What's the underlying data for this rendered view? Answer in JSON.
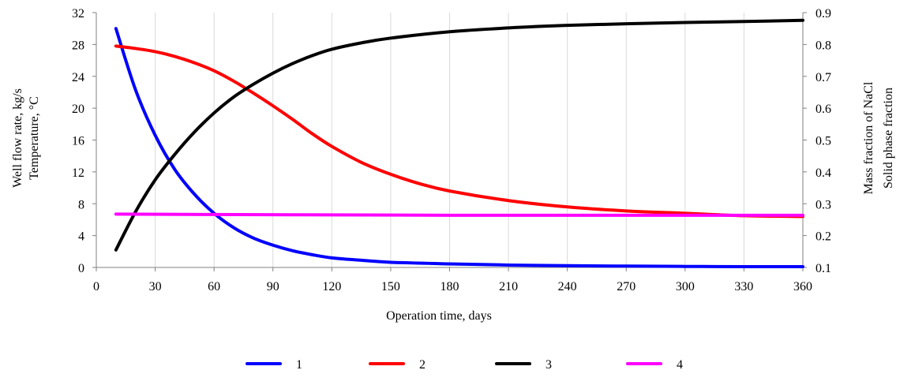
{
  "chart_data": {
    "type": "line",
    "xlabel": "Operation time, days",
    "ylabel_left": [
      "Well flow rate, kg/s",
      "Temperature, °C"
    ],
    "ylabel_right": [
      "Mass fraction of NaCl",
      "Solid phase fraction"
    ],
    "xlim": [
      0,
      360
    ],
    "ylim_left": [
      0,
      32
    ],
    "ylim_right": [
      0.1,
      0.9
    ],
    "x_ticks": [
      "0",
      "30",
      "60",
      "90",
      "120",
      "150",
      "180",
      "210",
      "240",
      "270",
      "300",
      "330",
      "360"
    ],
    "y_left_ticks": [
      "0",
      "4",
      "8",
      "12",
      "16",
      "20",
      "24",
      "28",
      "32"
    ],
    "y_right_ticks": [
      "0.1",
      "0.2",
      "0.3",
      "0.4",
      "0.5",
      "0.6",
      "0.7",
      "0.8",
      "0.9"
    ],
    "grid": "vertical",
    "legend_position": "bottom",
    "series": [
      {
        "name": "1",
        "color": "#0000ff",
        "axis": "left",
        "x": [
          10,
          20,
          30,
          40,
          50,
          60,
          70,
          80,
          90,
          100,
          110,
          120,
          135,
          150,
          180,
          210,
          240,
          270,
          300,
          330,
          360
        ],
        "y": [
          30.0,
          22.3,
          16.6,
          12.3,
          9.2,
          6.8,
          5.0,
          3.7,
          2.8,
          2.1,
          1.6,
          1.2,
          0.9,
          0.65,
          0.45,
          0.3,
          0.22,
          0.17,
          0.13,
          0.1,
          0.1
        ]
      },
      {
        "name": "2",
        "color": "#ff0000",
        "axis": "left",
        "x": [
          10,
          20,
          30,
          40,
          50,
          60,
          70,
          80,
          90,
          100,
          110,
          120,
          135,
          150,
          165,
          180,
          210,
          240,
          270,
          300,
          330,
          360
        ],
        "y": [
          27.8,
          27.5,
          27.1,
          26.5,
          25.7,
          24.7,
          23.4,
          21.9,
          20.3,
          18.6,
          16.8,
          15.2,
          13.2,
          11.7,
          10.5,
          9.6,
          8.4,
          7.6,
          7.1,
          6.8,
          6.5,
          6.4
        ]
      },
      {
        "name": "3",
        "color": "#000000",
        "axis": "right",
        "x": [
          10,
          20,
          30,
          40,
          50,
          60,
          70,
          80,
          90,
          100,
          110,
          120,
          135,
          150,
          180,
          210,
          240,
          270,
          300,
          330,
          360
        ],
        "y": [
          0.155,
          0.275,
          0.375,
          0.455,
          0.525,
          0.585,
          0.635,
          0.675,
          0.71,
          0.74,
          0.765,
          0.785,
          0.805,
          0.82,
          0.84,
          0.852,
          0.86,
          0.865,
          0.869,
          0.872,
          0.876
        ]
      },
      {
        "name": "4",
        "color": "#ff00ff",
        "axis": "left",
        "x": [
          10,
          60,
          120,
          180,
          240,
          300,
          360
        ],
        "y": [
          6.7,
          6.65,
          6.6,
          6.55,
          6.55,
          6.55,
          6.55
        ]
      }
    ]
  }
}
